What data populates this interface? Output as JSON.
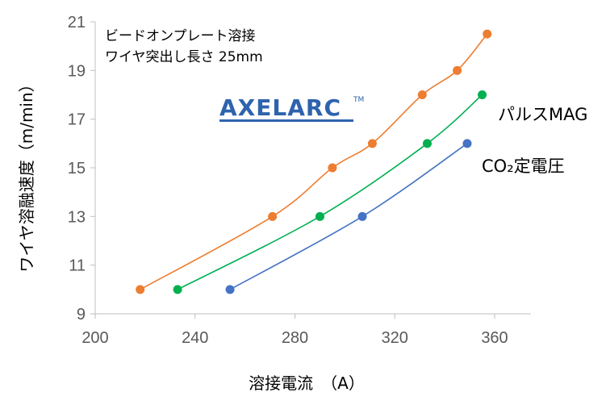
{
  "chart_data": {
    "type": "line",
    "xlabel": "溶接電流　（A）",
    "ylabel": "ワイヤ溶融速度（m/min）",
    "xlim": [
      200,
      360
    ],
    "ylim": [
      9,
      21
    ],
    "x_ticks": [
      200,
      240,
      280,
      320,
      360
    ],
    "y_ticks": [
      9,
      11,
      13,
      15,
      17,
      19,
      21
    ],
    "grid": "none",
    "annotation_lines": [
      "ビードオンプレート溶接",
      "ワイヤ突出し長さ 25mm"
    ],
    "logo": {
      "text": "AXELARC",
      "mark": "TM",
      "color": "#2e63ad"
    },
    "series": [
      {
        "name": "",
        "color": "#ed7d31",
        "points": [
          [
            218,
            10
          ],
          [
            271,
            13
          ],
          [
            295,
            15
          ],
          [
            311,
            16
          ],
          [
            331,
            18
          ],
          [
            345,
            19
          ],
          [
            357,
            20.5
          ]
        ]
      },
      {
        "name": "パルスMAG",
        "color": "#00b050",
        "points": [
          [
            233,
            10
          ],
          [
            290,
            13
          ],
          [
            333,
            16
          ],
          [
            355,
            18
          ]
        ]
      },
      {
        "name": "CO₂定電圧",
        "color": "#4472c4",
        "points": [
          [
            254,
            10
          ],
          [
            307,
            13
          ],
          [
            349,
            16
          ]
        ]
      }
    ]
  }
}
